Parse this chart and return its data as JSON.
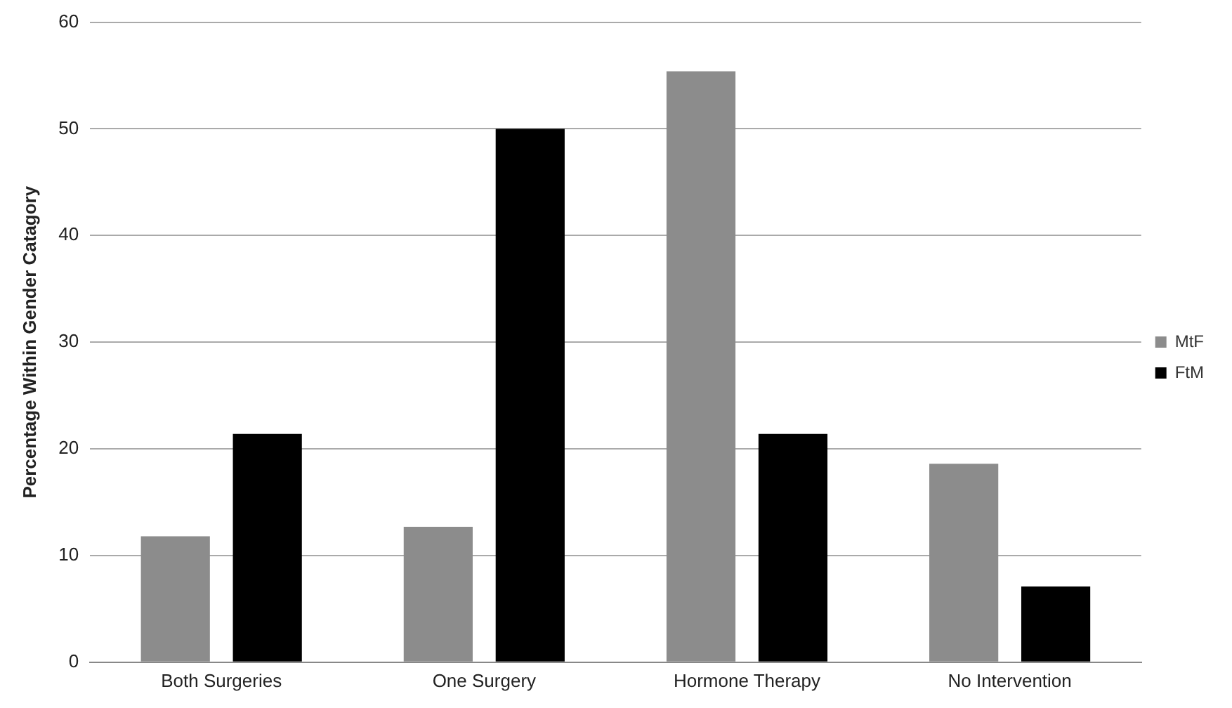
{
  "chart_data": {
    "type": "bar",
    "ylabel": "Percentage Within Gender Catagory",
    "categories": [
      "Both Surgeries",
      "One Surgery",
      "Hormone Therapy",
      "No Intervention"
    ],
    "series": [
      {
        "name": "MtF",
        "color": "#8c8c8c",
        "values": [
          11.8,
          12.7,
          55.4,
          18.6
        ]
      },
      {
        "name": "FtM",
        "color": "#000000",
        "values": [
          21.4,
          50,
          21.4,
          7.1
        ]
      }
    ],
    "ylim": [
      0,
      60
    ],
    "yticks": [
      0,
      10,
      20,
      30,
      40,
      50,
      60
    ],
    "grid": "y",
    "legend": "right"
  }
}
